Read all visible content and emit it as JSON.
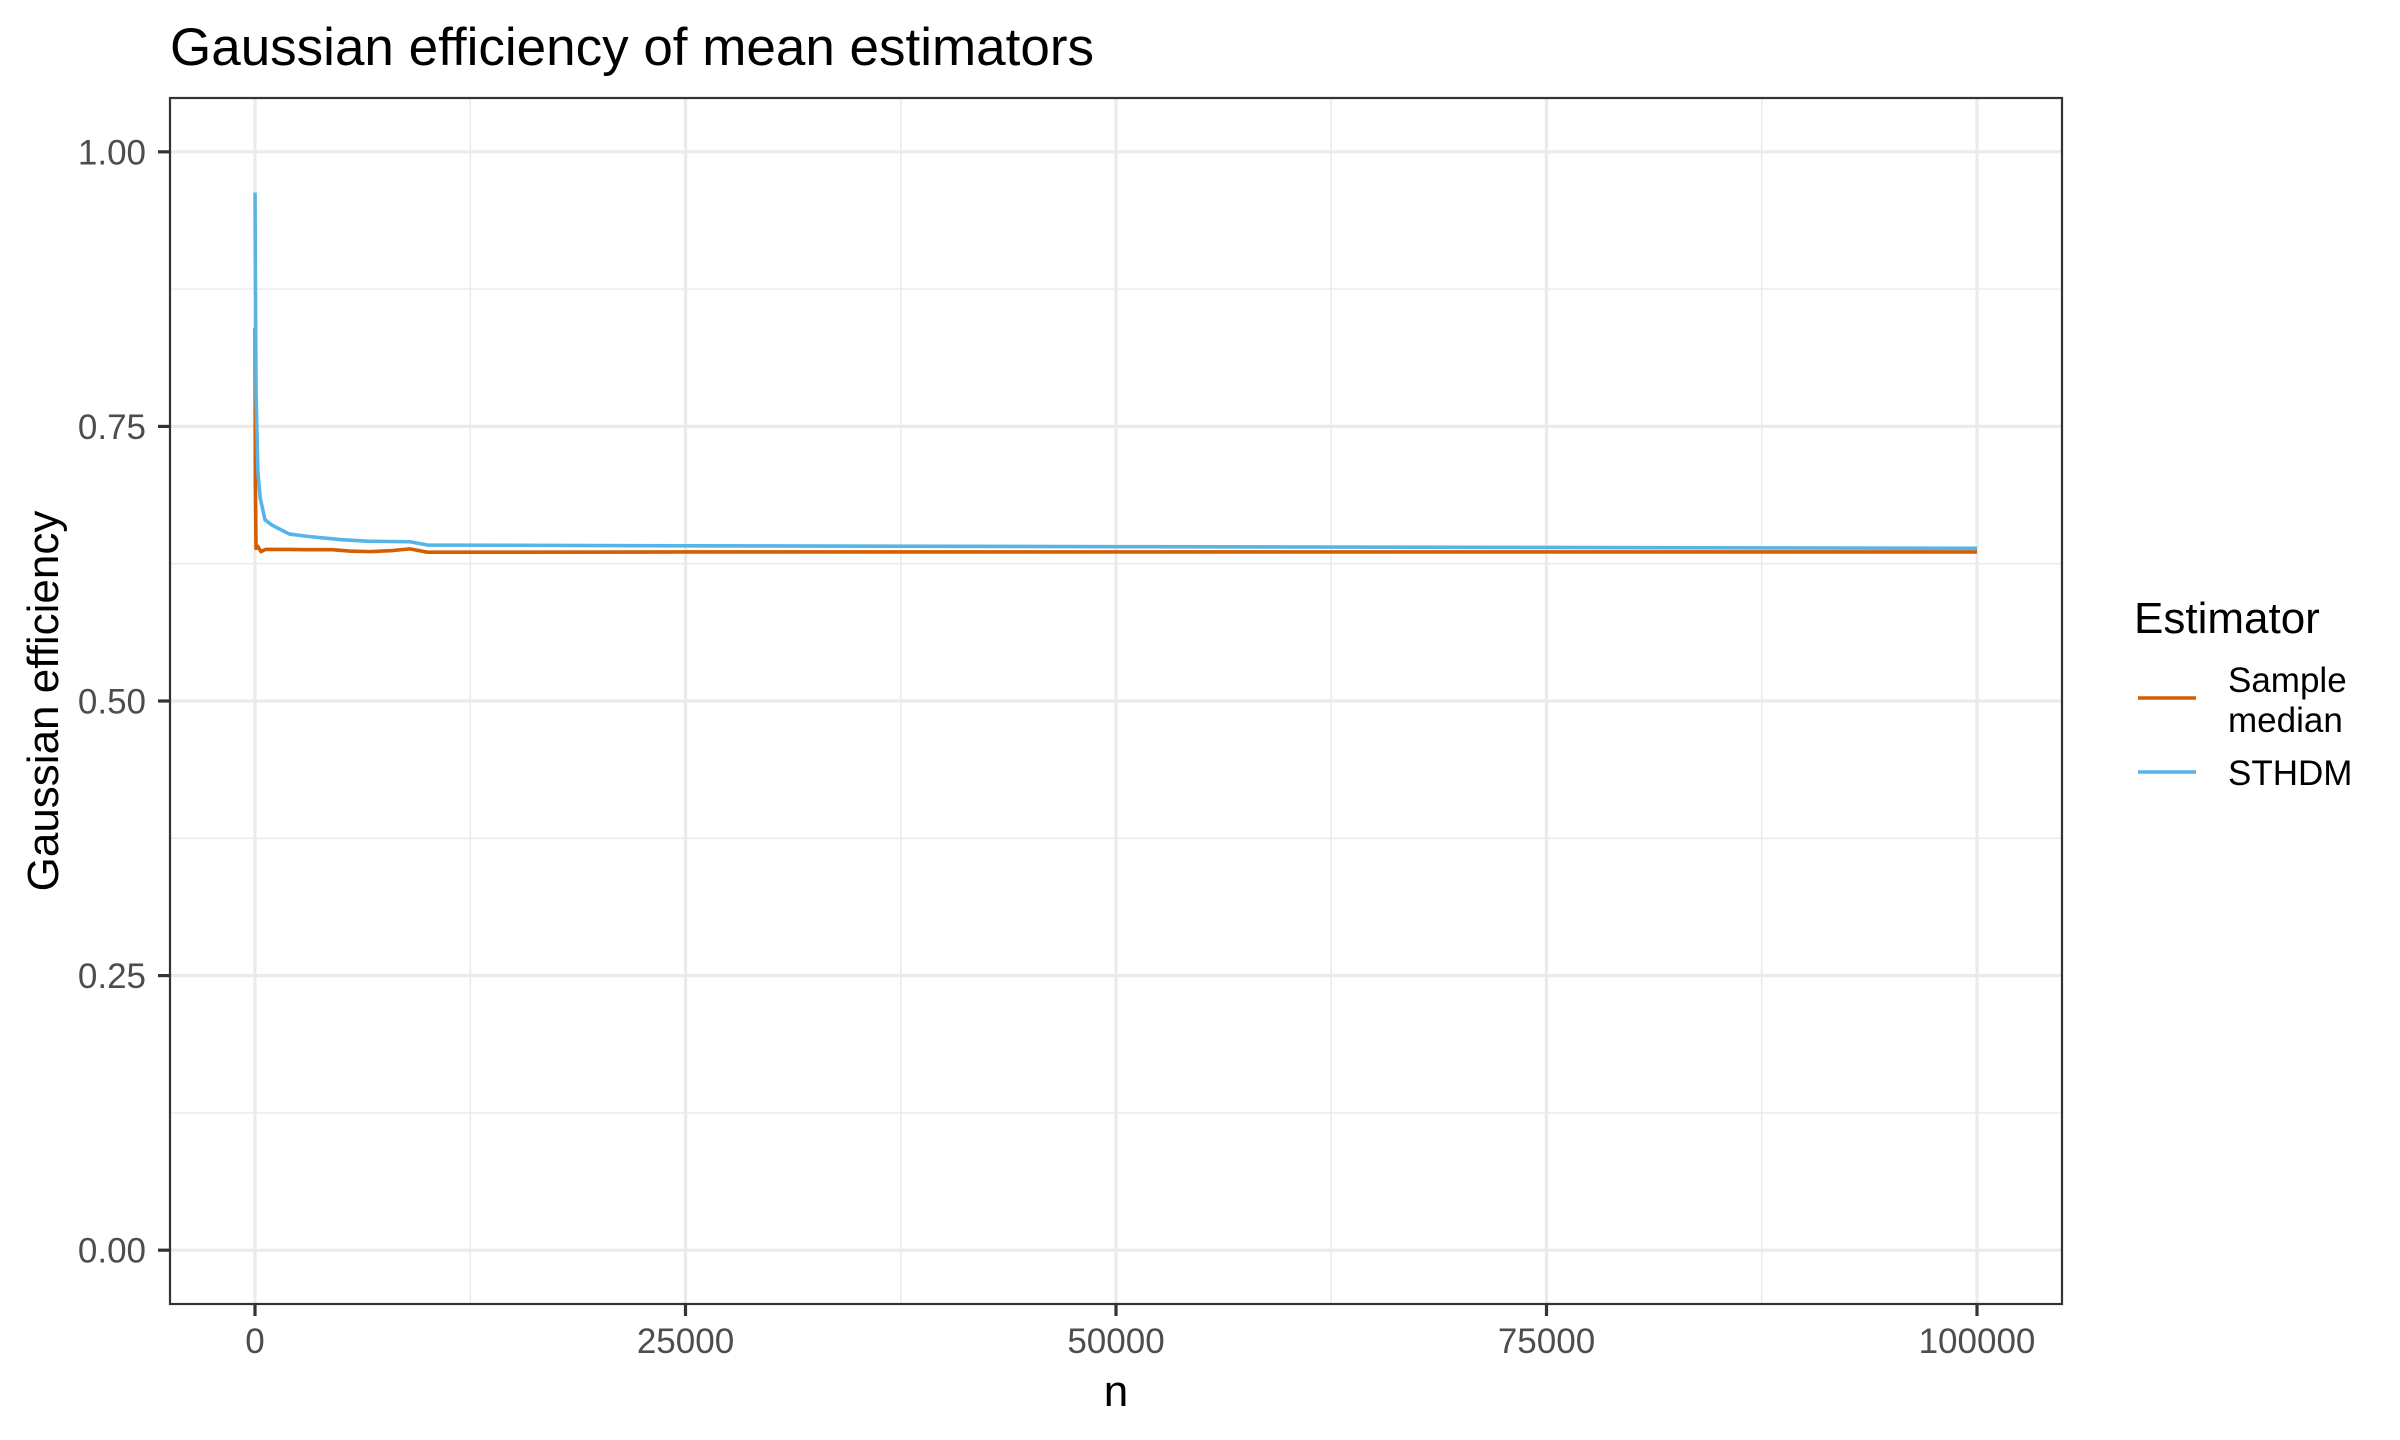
{
  "chart_data": {
    "type": "line",
    "title": "Gaussian efficiency of mean estimators",
    "xlabel": "n",
    "ylabel": "Gaussian efficiency",
    "xlim": [
      -4936,
      104936
    ],
    "ylim": [
      -0.049,
      1.049
    ],
    "x_ticks": [
      0,
      25000,
      50000,
      75000,
      100000
    ],
    "x_tick_labels": [
      "0",
      "25000",
      "50000",
      "75000",
      "100000"
    ],
    "x_minor_ticks": [
      12500,
      37500,
      62500,
      87500
    ],
    "y_ticks": [
      0,
      0.25,
      0.5,
      0.75,
      1.0
    ],
    "y_tick_labels": [
      "0.00",
      "0.25",
      "0.50",
      "0.75",
      "1.00"
    ],
    "y_minor_ticks": [
      0.125,
      0.375,
      0.625,
      0.875
    ],
    "grid": true,
    "legend": {
      "title": "Estimator",
      "position": "right",
      "entries": [
        {
          "label_lines": [
            "Sample",
            "median"
          ],
          "color": "#D55E00"
        },
        {
          "label_lines": [
            "STHDM"
          ],
          "color": "#56B4E9"
        }
      ]
    },
    "series": [
      {
        "name": "Sample median",
        "color": "#D55E00",
        "x": [
          2,
          20,
          60,
          150,
          350,
          600,
          1000,
          2000,
          3000,
          4500,
          5500,
          6700,
          8000,
          9000,
          10000,
          15000,
          25000,
          50000,
          75000,
          100000
        ],
        "y": [
          0.84,
          0.7,
          0.639,
          0.641,
          0.636,
          0.638,
          0.638,
          0.638,
          0.6378,
          0.6378,
          0.6365,
          0.636,
          0.637,
          0.6385,
          0.6355,
          0.6355,
          0.6357,
          0.6357,
          0.6357,
          0.6357
        ]
      },
      {
        "name": "STHDM",
        "color": "#56B4E9",
        "x": [
          2,
          20,
          60,
          170,
          300,
          580,
          1000,
          2000,
          3000,
          4940,
          6500,
          9000,
          10000,
          15000,
          25000,
          50000,
          75000,
          100000
        ],
        "y": [
          0.963,
          0.9,
          0.78,
          0.708,
          0.685,
          0.665,
          0.66,
          0.652,
          0.65,
          0.647,
          0.6455,
          0.645,
          0.642,
          0.6418,
          0.6413,
          0.6405,
          0.6398,
          0.639
        ]
      }
    ]
  }
}
